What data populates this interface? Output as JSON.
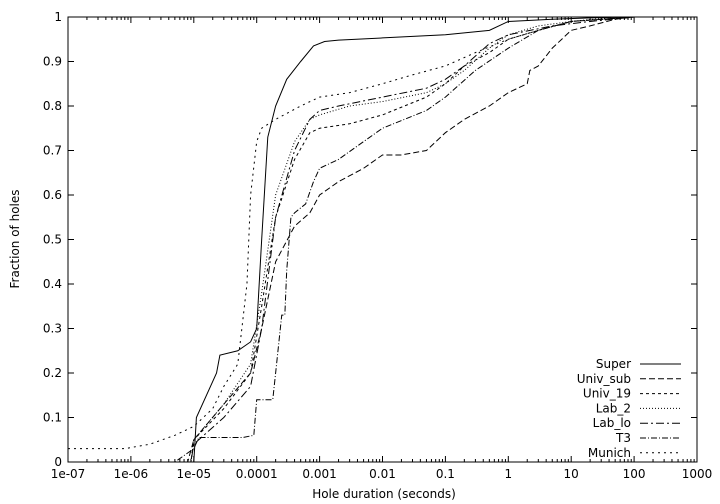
{
  "chart_data": {
    "type": "line",
    "title": "",
    "xlabel": "Hole duration (seconds)",
    "ylabel": "Fraction of holes",
    "x_scale": "log",
    "xlim": [
      1e-07,
      1000
    ],
    "ylim": [
      0,
      1
    ],
    "grid": false,
    "legend_position": "bottom-right",
    "x_ticks": [
      {
        "value": 1e-07,
        "label": "1e-07"
      },
      {
        "value": 1e-06,
        "label": "1e-06"
      },
      {
        "value": 1e-05,
        "label": "1e-05"
      },
      {
        "value": 0.0001,
        "label": "0.0001"
      },
      {
        "value": 0.001,
        "label": "0.001"
      },
      {
        "value": 0.01,
        "label": "0.01"
      },
      {
        "value": 0.1,
        "label": "0.1"
      },
      {
        "value": 1,
        "label": "1"
      },
      {
        "value": 10,
        "label": "10"
      },
      {
        "value": 100,
        "label": "100"
      },
      {
        "value": 1000,
        "label": "1000"
      }
    ],
    "y_ticks": [
      {
        "value": 0,
        "label": "0"
      },
      {
        "value": 0.1,
        "label": "0.1"
      },
      {
        "value": 0.2,
        "label": "0.2"
      },
      {
        "value": 0.3,
        "label": "0.3"
      },
      {
        "value": 0.4,
        "label": "0.4"
      },
      {
        "value": 0.5,
        "label": "0.5"
      },
      {
        "value": 0.6,
        "label": "0.6"
      },
      {
        "value": 0.7,
        "label": "0.7"
      },
      {
        "value": 0.8,
        "label": "0.8"
      },
      {
        "value": 0.9,
        "label": "0.9"
      },
      {
        "value": 1,
        "label": "1"
      }
    ],
    "series": [
      {
        "name": "Super",
        "dash": "",
        "x": [
          1e-07,
          1e-05,
          1.1e-05,
          2.3e-05,
          2.6e-05,
          5e-05,
          8e-05,
          0.0001,
          0.00012,
          0.00015,
          0.0002,
          0.0003,
          0.0005,
          0.0008,
          0.0012,
          0.002,
          0.01,
          0.1,
          0.5,
          1,
          5,
          20,
          100,
          1000
        ],
        "y": [
          0,
          0,
          0.1,
          0.2,
          0.24,
          0.25,
          0.27,
          0.3,
          0.5,
          0.73,
          0.8,
          0.86,
          0.9,
          0.935,
          0.945,
          0.948,
          0.953,
          0.96,
          0.97,
          0.99,
          0.995,
          0.998,
          1.0,
          1.0
        ]
      },
      {
        "name": "Univ_sub",
        "dash": "6,3",
        "x": [
          1e-07,
          8e-06,
          1e-05,
          3e-05,
          8e-05,
          0.00012,
          0.0002,
          0.0004,
          0.0007,
          0.001,
          0.002,
          0.005,
          0.01,
          0.02,
          0.05,
          0.1,
          0.2,
          0.5,
          1,
          2,
          2.2,
          3,
          5,
          10,
          20,
          50,
          100,
          1000
        ],
        "y": [
          0,
          0,
          0.05,
          0.13,
          0.2,
          0.3,
          0.45,
          0.53,
          0.56,
          0.6,
          0.63,
          0.66,
          0.69,
          0.69,
          0.7,
          0.74,
          0.77,
          0.8,
          0.83,
          0.85,
          0.88,
          0.89,
          0.93,
          0.97,
          0.98,
          0.995,
          1.0,
          1.0
        ]
      },
      {
        "name": "Univ_19",
        "dash": "3,3",
        "x": [
          1e-07,
          9e-06,
          1e-05,
          3e-05,
          8e-05,
          0.00012,
          0.0002,
          0.0004,
          0.0007,
          0.001,
          0.003,
          0.01,
          0.05,
          0.1,
          0.2,
          0.5,
          1,
          3,
          10,
          30,
          100,
          1000
        ],
        "y": [
          0,
          0,
          0.05,
          0.12,
          0.2,
          0.35,
          0.55,
          0.68,
          0.74,
          0.75,
          0.76,
          0.78,
          0.82,
          0.85,
          0.89,
          0.92,
          0.95,
          0.97,
          0.99,
          0.995,
          1.0,
          1.0
        ]
      },
      {
        "name": "Lab_2",
        "dash": "1,2",
        "x": [
          1e-07,
          9e-06,
          1e-05,
          3e-05,
          8e-05,
          0.00012,
          0.0002,
          0.0004,
          0.0007,
          0.001,
          0.003,
          0.01,
          0.05,
          0.1,
          0.2,
          0.5,
          1,
          3,
          10,
          50,
          1000
        ],
        "y": [
          0,
          0,
          0.05,
          0.13,
          0.22,
          0.38,
          0.6,
          0.72,
          0.77,
          0.78,
          0.8,
          0.81,
          0.83,
          0.85,
          0.88,
          0.93,
          0.96,
          0.98,
          0.99,
          1.0,
          1.0
        ]
      },
      {
        "name": "Lab_lo",
        "dash": "8,3,2,3",
        "x": [
          1e-07,
          9e-06,
          1e-05,
          3e-05,
          8e-05,
          0.00012,
          0.0002,
          0.0004,
          0.0007,
          0.001,
          0.002,
          0.01,
          0.05,
          0.1,
          0.2,
          0.5,
          1,
          5,
          20,
          100,
          1000
        ],
        "y": [
          0,
          0,
          0.04,
          0.1,
          0.17,
          0.3,
          0.55,
          0.7,
          0.77,
          0.79,
          0.8,
          0.82,
          0.84,
          0.86,
          0.89,
          0.94,
          0.96,
          0.98,
          0.99,
          1.0,
          1.0
        ]
      },
      {
        "name": "T3",
        "dash": "6,2,1,2",
        "x": [
          1e-07,
          5e-06,
          1e-05,
          1.2e-05,
          3e-05,
          6e-05,
          9e-05,
          0.0001,
          0.00012,
          0.00018,
          0.0002,
          0.00025,
          0.00028,
          0.0003,
          0.00035,
          0.0004,
          0.0006,
          0.0008,
          0.001,
          0.002,
          0.005,
          0.01,
          0.05,
          0.1,
          0.3,
          1,
          3,
          10,
          100,
          1000
        ],
        "y": [
          0,
          0,
          0.03,
          0.055,
          0.055,
          0.055,
          0.06,
          0.14,
          0.14,
          0.14,
          0.2,
          0.33,
          0.33,
          0.43,
          0.55,
          0.56,
          0.58,
          0.63,
          0.66,
          0.68,
          0.72,
          0.75,
          0.79,
          0.82,
          0.88,
          0.93,
          0.97,
          0.99,
          1.0,
          1.0
        ]
      },
      {
        "name": "Munich",
        "dash": "2,4",
        "x": [
          1e-07,
          8e-07,
          2e-06,
          5e-06,
          1e-05,
          2e-05,
          3e-05,
          5e-05,
          7e-05,
          8e-05,
          0.0001,
          0.00012,
          0.0002,
          0.0005,
          0.001,
          0.003,
          0.01,
          0.03,
          0.1,
          0.3,
          1,
          3,
          10,
          100,
          1000
        ],
        "y": [
          0.03,
          0.03,
          0.04,
          0.06,
          0.08,
          0.12,
          0.17,
          0.22,
          0.4,
          0.6,
          0.72,
          0.75,
          0.77,
          0.8,
          0.82,
          0.83,
          0.85,
          0.87,
          0.89,
          0.92,
          0.95,
          0.97,
          0.99,
          1.0,
          1.0
        ]
      }
    ]
  }
}
